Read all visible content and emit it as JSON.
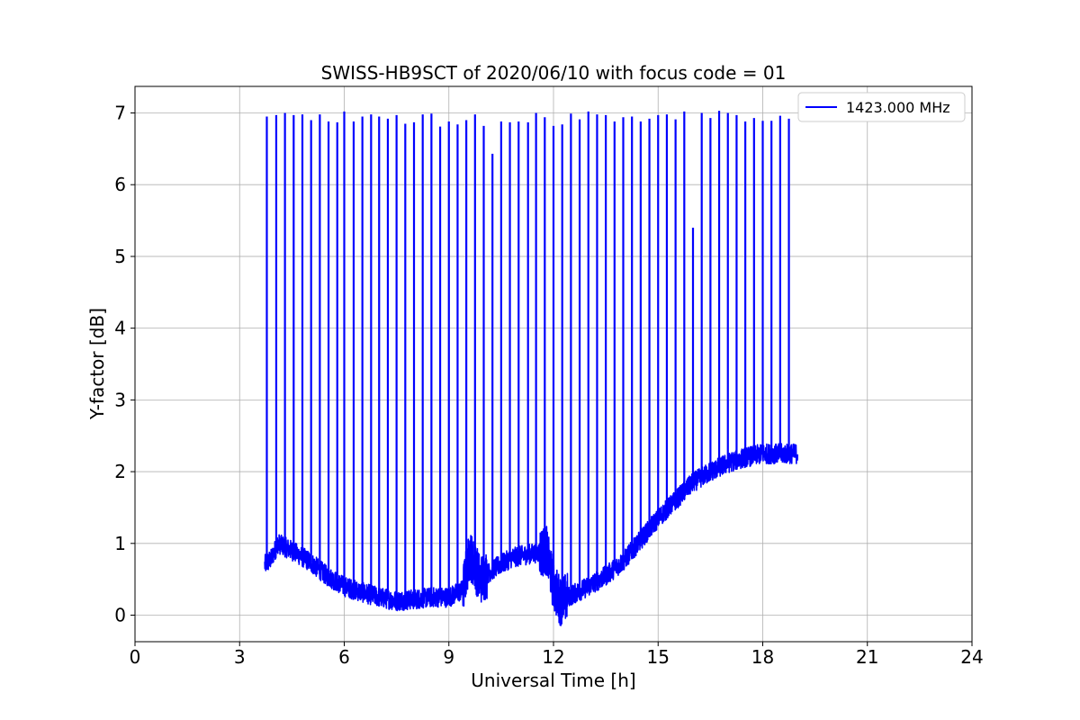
{
  "chart_data": {
    "type": "line",
    "title": "SWISS-HB9SCT of 2020/06/10 with focus code = 01",
    "xlabel": "Universal Time [h]",
    "ylabel": "Y-factor [dB]",
    "xlim": [
      0,
      24
    ],
    "ylim": [
      -0.37,
      7.37
    ],
    "xticks": [
      0,
      3,
      6,
      9,
      12,
      15,
      18,
      21,
      24
    ],
    "yticks": [
      0,
      1,
      2,
      3,
      4,
      5,
      6,
      7
    ],
    "xtick_labels": [
      "0",
      "3",
      "6",
      "9",
      "12",
      "15",
      "18",
      "21",
      "24"
    ],
    "ytick_labels": [
      "0",
      "1",
      "2",
      "3",
      "4",
      "5",
      "6",
      "7"
    ],
    "grid": true,
    "legend_position": "top-right",
    "series": [
      {
        "name": "1423.000 MHz",
        "color": "#0000ff",
        "x_range": [
          3.72,
          19.0
        ],
        "baseline": [
          [
            3.72,
            0.7
          ],
          [
            3.9,
            0.78
          ],
          [
            4.1,
            1.0
          ],
          [
            4.5,
            0.9
          ],
          [
            5.0,
            0.75
          ],
          [
            5.5,
            0.55
          ],
          [
            6.0,
            0.4
          ],
          [
            6.5,
            0.32
          ],
          [
            7.0,
            0.25
          ],
          [
            7.5,
            0.2
          ],
          [
            8.0,
            0.22
          ],
          [
            8.5,
            0.25
          ],
          [
            9.0,
            0.25
          ],
          [
            9.4,
            0.35
          ],
          [
            9.6,
            0.85
          ],
          [
            9.9,
            0.5
          ],
          [
            10.3,
            0.65
          ],
          [
            10.8,
            0.8
          ],
          [
            11.3,
            0.85
          ],
          [
            11.8,
            0.9
          ],
          [
            12.0,
            0.4
          ],
          [
            12.2,
            0.2
          ],
          [
            12.6,
            0.3
          ],
          [
            13.0,
            0.4
          ],
          [
            13.5,
            0.55
          ],
          [
            14.0,
            0.75
          ],
          [
            14.5,
            1.05
          ],
          [
            15.0,
            1.35
          ],
          [
            15.5,
            1.6
          ],
          [
            16.0,
            1.85
          ],
          [
            16.5,
            2.0
          ],
          [
            17.0,
            2.12
          ],
          [
            17.5,
            2.2
          ],
          [
            18.0,
            2.25
          ],
          [
            18.5,
            2.25
          ],
          [
            19.0,
            2.25
          ]
        ],
        "spikes": [
          [
            3.78,
            6.95
          ],
          [
            4.05,
            6.97
          ],
          [
            4.3,
            7.0
          ],
          [
            4.55,
            6.97
          ],
          [
            4.8,
            6.98
          ],
          [
            5.05,
            6.9
          ],
          [
            5.3,
            6.98
          ],
          [
            5.55,
            6.88
          ],
          [
            5.8,
            6.87
          ],
          [
            6.0,
            7.02
          ],
          [
            6.27,
            6.88
          ],
          [
            6.52,
            6.95
          ],
          [
            6.77,
            6.98
          ],
          [
            7.0,
            6.95
          ],
          [
            7.25,
            6.92
          ],
          [
            7.5,
            6.97
          ],
          [
            7.75,
            6.85
          ],
          [
            8.0,
            6.87
          ],
          [
            8.25,
            6.98
          ],
          [
            8.5,
            6.99
          ],
          [
            8.75,
            6.81
          ],
          [
            9.0,
            6.88
          ],
          [
            9.25,
            6.84
          ],
          [
            9.5,
            6.9
          ],
          [
            9.75,
            6.98
          ],
          [
            10.0,
            6.82
          ],
          [
            10.25,
            6.43
          ],
          [
            10.5,
            6.88
          ],
          [
            10.75,
            6.87
          ],
          [
            11.0,
            6.88
          ],
          [
            11.27,
            6.87
          ],
          [
            11.5,
            7.0
          ],
          [
            11.75,
            6.94
          ],
          [
            12.0,
            6.82
          ],
          [
            12.25,
            6.84
          ],
          [
            12.5,
            6.99
          ],
          [
            12.75,
            6.91
          ],
          [
            13.0,
            7.02
          ],
          [
            13.25,
            6.98
          ],
          [
            13.5,
            6.97
          ],
          [
            13.75,
            6.88
          ],
          [
            14.0,
            6.94
          ],
          [
            14.25,
            6.95
          ],
          [
            14.5,
            6.88
          ],
          [
            14.75,
            6.92
          ],
          [
            15.0,
            6.97
          ],
          [
            15.25,
            6.98
          ],
          [
            15.5,
            6.91
          ],
          [
            15.75,
            7.02
          ],
          [
            16.0,
            5.4
          ],
          [
            16.25,
            7.0
          ],
          [
            16.5,
            6.93
          ],
          [
            16.75,
            7.03
          ],
          [
            17.0,
            7.0
          ],
          [
            17.25,
            6.97
          ],
          [
            17.5,
            6.88
          ],
          [
            17.75,
            6.93
          ],
          [
            18.0,
            6.89
          ],
          [
            18.25,
            6.89
          ],
          [
            18.5,
            6.96
          ],
          [
            18.75,
            6.92
          ]
        ]
      }
    ]
  }
}
